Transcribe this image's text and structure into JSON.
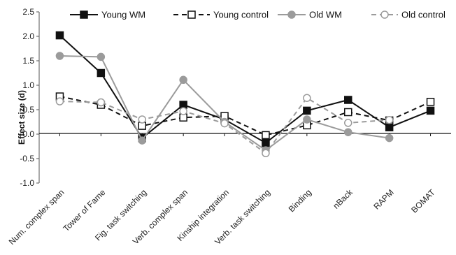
{
  "chart_data": {
    "type": "line",
    "title": "",
    "xlabel": "",
    "ylabel": "Effect size (d)",
    "ylim": [
      -1.0,
      2.5
    ],
    "ytick_step": 0.5,
    "grid": false,
    "legend_position": "top",
    "categories": [
      "Num. complex span",
      "Tower of Fame",
      "Fig. task switching",
      "Verb. complex span",
      "Kinship integration",
      "Verb. task switching",
      "Binding",
      "nBack",
      "RAPM",
      "BOMAT"
    ],
    "series": [
      {
        "name": "Young WM",
        "color": "#111111",
        "dash": "solid",
        "marker": "square-filled",
        "values": [
          2.02,
          1.25,
          -0.08,
          0.6,
          0.3,
          -0.18,
          0.48,
          0.7,
          0.14,
          0.48
        ]
      },
      {
        "name": "Young control",
        "color": "#111111",
        "dash": "dashed",
        "marker": "square-open",
        "values": [
          0.77,
          0.6,
          0.17,
          0.34,
          0.37,
          -0.02,
          0.18,
          0.45,
          0.28,
          0.66
        ]
      },
      {
        "name": "Old WM",
        "color": "#9b9b9b",
        "dash": "solid",
        "marker": "circle-filled",
        "values": [
          1.6,
          1.58,
          -0.13,
          1.11,
          0.25,
          -0.33,
          0.3,
          0.04,
          -0.08,
          null
        ]
      },
      {
        "name": "Old control",
        "color": "#9b9b9b",
        "dash": "dashed",
        "marker": "circle-open",
        "values": [
          0.67,
          0.65,
          0.3,
          0.47,
          0.22,
          -0.39,
          0.74,
          0.23,
          0.29,
          null
        ]
      }
    ]
  }
}
